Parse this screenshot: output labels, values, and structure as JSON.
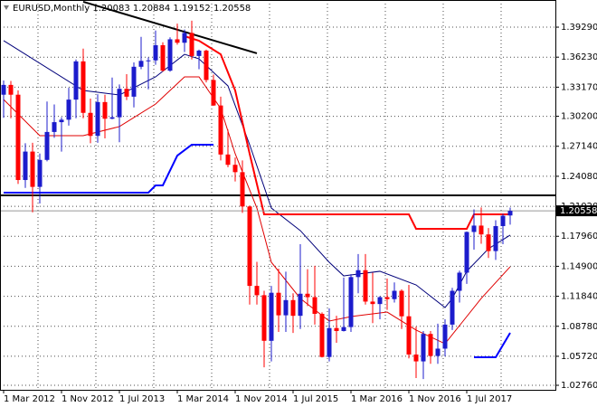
{
  "chart_data": {
    "type": "candlestick",
    "title": "EURUSD,Monthly  1.20083 1.20884 1.19152 1.20558",
    "categories": [
      "1 Mar 2012",
      null,
      null,
      null,
      null,
      null,
      null,
      null,
      "1 Nov 2012",
      null,
      null,
      null,
      null,
      null,
      null,
      null,
      "1 Jul 2013",
      null,
      null,
      null,
      null,
      null,
      null,
      null,
      "1 Mar 2014",
      null,
      null,
      null,
      null,
      null,
      null,
      null,
      "1 Nov 2014",
      null,
      null,
      null,
      null,
      null,
      null,
      null,
      "1 Jul 2015",
      null,
      null,
      null,
      null,
      null,
      null,
      null,
      "1 Mar 2016",
      null,
      null,
      null,
      null,
      null,
      null,
      null,
      "1 Nov 2016",
      null,
      null,
      null,
      null,
      null,
      null,
      null,
      "1 Jul 2017",
      null,
      null,
      null,
      null,
      null,
      null
    ],
    "open": [
      1.324,
      1.334,
      1.324,
      1.237,
      1.266,
      1.23,
      1.2575,
      1.286,
      1.296,
      1.2985,
      1.319,
      1.358,
      1.3055,
      1.282,
      1.3165,
      1.2995,
      1.301,
      1.33,
      1.322,
      1.3525,
      1.3585,
      1.359,
      1.3745,
      1.3485,
      1.3805,
      1.377,
      1.387,
      1.3635,
      1.369,
      1.339,
      1.313,
      1.263,
      1.2525,
      1.245,
      1.21,
      1.129,
      1.1195,
      1.073,
      1.122,
      1.099,
      1.1145,
      1.0985,
      1.121,
      1.1175,
      1.1005,
      1.0565,
      1.086,
      1.083,
      1.087,
      1.138,
      1.145,
      1.113,
      1.1105,
      1.1175,
      1.1155,
      1.124,
      1.098,
      1.059,
      1.052,
      1.08,
      1.0575,
      1.065,
      1.0895,
      1.124,
      1.1425,
      1.184,
      1.1905,
      1.1815,
      1.1645,
      1.19,
      1.20083
    ],
    "high": [
      1.3385,
      1.338,
      1.3285,
      1.2745,
      1.275,
      1.264,
      1.317,
      1.314,
      1.301,
      1.331,
      1.36,
      1.371,
      1.32,
      1.3245,
      1.324,
      1.3415,
      1.3345,
      1.345,
      1.357,
      1.383,
      1.362,
      1.3895,
      1.3775,
      1.3825,
      1.3965,
      1.3905,
      1.3995,
      1.37,
      1.37,
      1.3445,
      1.322,
      1.2885,
      1.26,
      1.257,
      1.211,
      1.1535,
      1.124,
      1.129,
      1.1465,
      1.1435,
      1.1215,
      1.1715,
      1.146,
      1.1495,
      1.102,
      1.106,
      1.0985,
      1.1375,
      1.141,
      1.1615,
      1.1615,
      1.1425,
      1.1185,
      1.1365,
      1.1325,
      1.1255,
      1.13,
      1.0875,
      1.083,
      1.083,
      1.0905,
      1.095,
      1.127,
      1.1445,
      1.1845,
      1.207,
      1.209,
      1.188,
      1.196,
      1.2025,
      1.20884
    ],
    "low": [
      1.3005,
      1.3,
      1.233,
      1.229,
      1.204,
      1.213,
      1.256,
      1.28,
      1.266,
      1.2925,
      1.3,
      1.3,
      1.2745,
      1.275,
      1.2795,
      1.299,
      1.2755,
      1.3185,
      1.311,
      1.35,
      1.3295,
      1.3545,
      1.3475,
      1.3475,
      1.375,
      1.3675,
      1.36,
      1.35,
      1.3365,
      1.3125,
      1.257,
      1.25,
      1.2355,
      1.2035,
      1.11,
      1.11,
      1.046,
      1.052,
      1.082,
      1.082,
      1.081,
      1.085,
      1.1085,
      1.0895,
      1.056,
      1.052,
      1.071,
      1.0825,
      1.082,
      1.1215,
      1.11,
      1.091,
      1.095,
      1.1045,
      1.112,
      1.085,
      1.055,
      1.035,
      1.034,
      1.0495,
      1.0495,
      1.057,
      1.084,
      1.112,
      1.131,
      1.166,
      1.172,
      1.1575,
      1.1555,
      1.1715,
      1.19152
    ],
    "close": [
      1.334,
      1.324,
      1.237,
      1.266,
      1.23,
      1.2575,
      1.286,
      1.296,
      1.2985,
      1.319,
      1.358,
      1.3055,
      1.282,
      1.3165,
      1.2995,
      1.301,
      1.33,
      1.322,
      1.3525,
      1.3585,
      1.359,
      1.3745,
      1.3485,
      1.3805,
      1.377,
      1.387,
      1.3635,
      1.369,
      1.339,
      1.313,
      1.263,
      1.2525,
      1.245,
      1.21,
      1.129,
      1.1195,
      1.073,
      1.122,
      1.099,
      1.1145,
      1.0985,
      1.121,
      1.1175,
      1.1005,
      1.0565,
      1.086,
      1.083,
      1.087,
      1.138,
      1.145,
      1.113,
      1.1105,
      1.1175,
      1.1155,
      1.124,
      1.098,
      1.059,
      1.052,
      1.08,
      1.0575,
      1.065,
      1.0895,
      1.124,
      1.1425,
      1.184,
      1.1905,
      1.1815,
      1.1645,
      1.19,
      1.2005,
      1.20558
    ],
    "up_color": "#1c1ccc",
    "down_color": "#ff0000",
    "ylim": [
      1.023,
      1.4206
    ],
    "yticks": [
      {
        "value": 1.3929,
        "label": "1.39290"
      },
      {
        "value": 1.3623,
        "label": "1.36230"
      },
      {
        "value": 1.3317,
        "label": "1.33170"
      },
      {
        "value": 1.302,
        "label": "1.30200"
      },
      {
        "value": 1.2714,
        "label": "1.27140"
      },
      {
        "value": 1.2408,
        "label": "1.24080"
      },
      {
        "value": 1.2102,
        "label": "1.21020"
      },
      {
        "value": 1.1796,
        "label": "1.17960"
      },
      {
        "value": 1.149,
        "label": "1.14900"
      },
      {
        "value": 1.1184,
        "label": "1.11840"
      },
      {
        "value": 1.0878,
        "label": "1.08780"
      },
      {
        "value": 1.0572,
        "label": "1.05720"
      },
      {
        "value": 1.0276,
        "label": "1.02760"
      }
    ],
    "grid": true,
    "lines": [
      {
        "color": "#00007a",
        "width": 1,
        "x": [
          0,
          11,
          16,
          21,
          25,
          27,
          31,
          34,
          37,
          41,
          45,
          47,
          52,
          57,
          61,
          62,
          64,
          67,
          70
        ],
        "values": [
          1.3791,
          1.3283,
          1.3237,
          1.3422,
          1.3652,
          1.3606,
          1.333,
          1.273,
          1.2084,
          1.1854,
          1.1531,
          1.1392,
          1.1439,
          1.13,
          1.1069,
          1.1162,
          1.1439,
          1.1669,
          1.1808
        ]
      },
      {
        "color": "#e00000",
        "width": 1,
        "x": [
          0,
          5,
          11,
          16,
          21,
          25,
          27,
          30,
          32,
          35,
          37,
          41,
          45,
          48,
          53,
          57,
          61,
          63,
          66,
          70
        ],
        "values": [
          1.3191,
          1.2822,
          1.2822,
          1.2915,
          1.3145,
          1.3422,
          1.3422,
          1.3099,
          1.2638,
          1.2084,
          1.1531,
          1.1162,
          1.0931,
          1.0977,
          1.1023,
          1.0839,
          1.07,
          1.0885,
          1.1162,
          1.1485
        ]
      },
      {
        "color": "#ff0000",
        "width": 2,
        "x": [
          25,
          27,
          30,
          32,
          34,
          36,
          56,
          57,
          64,
          65,
          70
        ],
        "values": [
          1.3837,
          1.3791,
          1.3652,
          1.3283,
          1.2638,
          1.202,
          1.202,
          1.1872,
          1.1872,
          1.202,
          1.202
        ]
      },
      {
        "color": "#0000ff",
        "width": 2,
        "x": [
          0,
          20,
          21,
          22,
          24,
          26,
          29,
          30,
          65,
          68,
          70
        ],
        "values": [
          1.2241,
          1.2241,
          1.2315,
          1.2315,
          1.2619,
          1.273,
          1.273,
          null,
          1.0562,
          1.0562,
          1.0811
        ]
      },
      {
        "color": "#000000",
        "width": 2,
        "x": [
          11,
          35
        ],
        "values": [
          1.4188,
          1.3662
        ]
      }
    ],
    "hlines": [
      {
        "color": "#000000",
        "value": 1.2213
      }
    ]
  }
}
